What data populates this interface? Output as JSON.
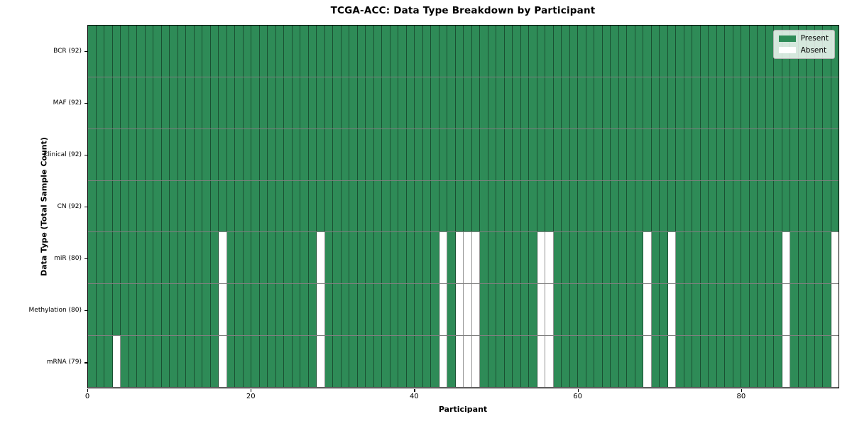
{
  "chart_data": {
    "type": "heatmap",
    "title": "TCGA-ACC: Data Type Breakdown by Participant",
    "xlabel": "Participant",
    "ylabel": "Data Type (Total Sample Count)",
    "x_ticks": [
      0,
      20,
      40,
      60,
      80
    ],
    "x_range": [
      0,
      92
    ],
    "n_participants": 92,
    "grid": true,
    "legend_position": "upper right",
    "rows": [
      {
        "label": "BCR (92)",
        "present_count": 92,
        "absent_participants": []
      },
      {
        "label": "MAF (92)",
        "present_count": 92,
        "absent_participants": []
      },
      {
        "label": "Clinical (92)",
        "present_count": 92,
        "absent_participants": []
      },
      {
        "label": "CN (92)",
        "present_count": 92,
        "absent_participants": []
      },
      {
        "label": "miR (80)",
        "present_count": 80,
        "absent_participants": [
          16,
          28,
          43,
          45,
          46,
          47,
          55,
          56,
          68,
          71,
          85,
          91
        ]
      },
      {
        "label": "Methylation (80)",
        "present_count": 80,
        "absent_participants": [
          16,
          28,
          43,
          45,
          46,
          47,
          55,
          56,
          68,
          71,
          85,
          91
        ]
      },
      {
        "label": "mRNA (79)",
        "present_count": 79,
        "absent_participants": [
          3,
          16,
          28,
          43,
          45,
          46,
          47,
          55,
          56,
          68,
          71,
          85,
          91
        ]
      }
    ],
    "legend": [
      {
        "label": "Present",
        "color": "#2E8B57"
      },
      {
        "label": "Absent",
        "color": "#FFFFFF"
      }
    ],
    "colors": {
      "present": "#2E8B57",
      "absent": "#FFFFFF",
      "spine": "#000000"
    }
  }
}
